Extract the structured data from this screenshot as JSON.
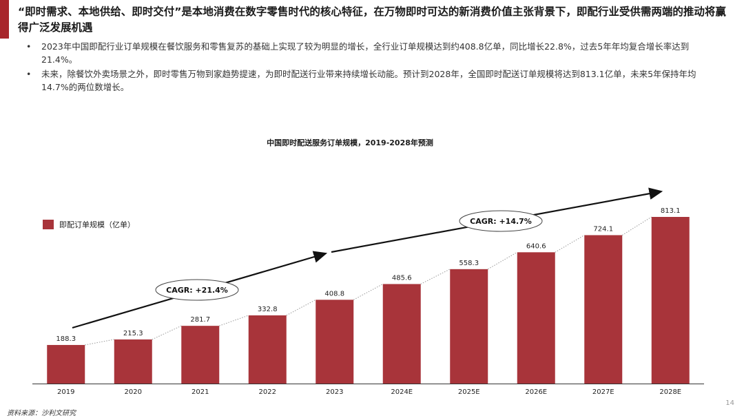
{
  "colors": {
    "accent": "#a8262b",
    "bar": "#a8343a",
    "arrow": "#111111",
    "leader": "#999999",
    "axis": "#333333"
  },
  "header": {
    "title": "“即时需求、本地供给、即时交付”是本地消费在数字零售时代的核心特征，在万物即时可达的新消费价值主张背景下，即配行业受供需两端的推动将赢得广泛发展机遇"
  },
  "bullets": [
    {
      "marker": "•",
      "text": "2023年中国即配行业订单规模在餐饮服务和零售复苏的基础上实现了较为明显的增长，全行业订单规模达到约408.8亿单，同比增长22.8%，过去5年年均复合增长率达到21.4%。"
    },
    {
      "marker": "•",
      "text": "未来，除餐饮外卖场景之外，即时零售万物到家趋势提速，为即时配送行业带来持续增长动能。预计到2028年，全国即时配送订单规模将达到813.1亿单，未来5年保持年均14.7%的两位数增长。"
    }
  ],
  "chart_data": {
    "type": "bar",
    "title": "中国即时配送服务订单规模，2019-2028年预测",
    "categories": [
      "2019",
      "2020",
      "2021",
      "2022",
      "2023",
      "2024E",
      "2025E",
      "2026E",
      "2027E",
      "2028E"
    ],
    "series": [
      {
        "name": "即配订单规模（亿单）",
        "values": [
          188.3,
          215.3,
          281.7,
          332.8,
          408.8,
          485.6,
          558.3,
          640.6,
          724.1,
          813.1
        ]
      }
    ],
    "data_labels": [
      "188.3",
      "215.3",
      "281.7",
      "332.8",
      "408.8",
      "485.6",
      "558.3",
      "640.6",
      "724.1",
      "813.1"
    ],
    "ylim": [
      0,
      813.1
    ],
    "grid": false,
    "legend": "top-left",
    "annotations": [
      {
        "text": "CAGR: +21.4%",
        "from": "2019",
        "to": "2023"
      },
      {
        "text": "CAGR: +14.7%",
        "from": "2023",
        "to": "2028E"
      }
    ]
  },
  "footer": {
    "source": "资料来源：沙利文研究",
    "page": "14"
  }
}
